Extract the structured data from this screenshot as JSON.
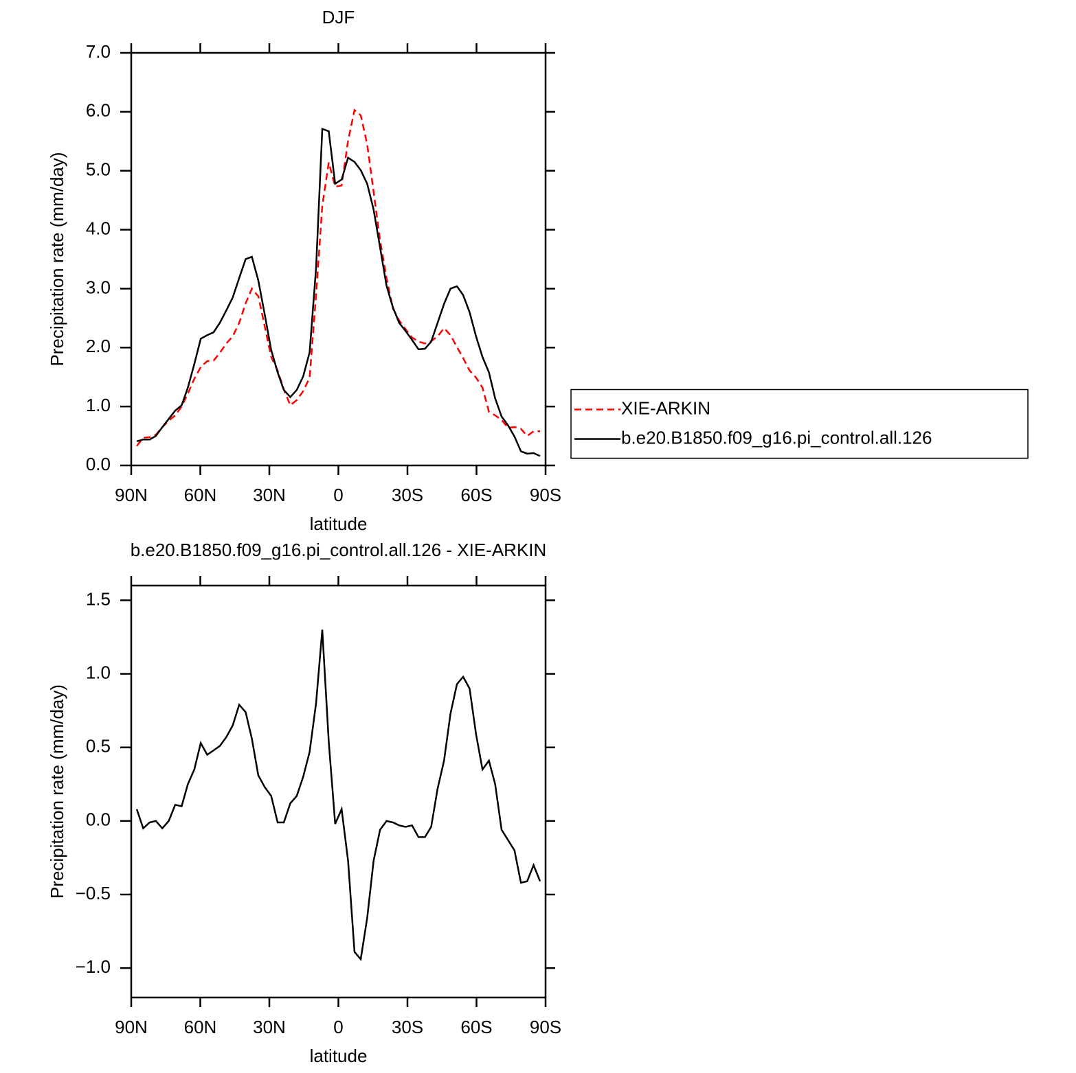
{
  "chart_data": [
    {
      "type": "line",
      "title": "DJF",
      "xlabel": "latitude",
      "ylabel": "Precipitation rate (mm/day)",
      "x": [
        87.6,
        84.8,
        82.0,
        79.3,
        76.5,
        73.7,
        70.9,
        68.1,
        65.4,
        62.6,
        59.8,
        57.0,
        54.2,
        51.5,
        48.7,
        45.9,
        43.1,
        40.3,
        37.6,
        34.8,
        32.0,
        29.2,
        26.4,
        23.7,
        20.9,
        18.1,
        15.3,
        12.5,
        9.7,
        7.0,
        4.2,
        1.4,
        -1.4,
        -4.2,
        -7.0,
        -9.7,
        -12.5,
        -15.3,
        -18.1,
        -20.9,
        -23.7,
        -26.4,
        -29.2,
        -32.0,
        -34.8,
        -37.6,
        -40.3,
        -43.1,
        -45.9,
        -48.7,
        -51.5,
        -54.2,
        -57.0,
        -59.8,
        -62.6,
        -65.4,
        -68.1,
        -70.9,
        -73.7,
        -76.5,
        -79.3,
        -82.0,
        -84.8,
        -87.6
      ],
      "series": [
        {
          "name": "XIE-ARKIN",
          "color": "#ff0000",
          "linestyle": "dashed",
          "values": [
            0.33,
            0.47,
            0.48,
            0.52,
            0.65,
            0.76,
            0.85,
            1.0,
            1.22,
            1.47,
            1.67,
            1.77,
            1.78,
            1.91,
            2.07,
            2.19,
            2.42,
            2.75,
            3.0,
            2.87,
            2.36,
            1.84,
            1.61,
            1.29,
            1.02,
            1.11,
            1.26,
            1.49,
            2.89,
            4.4,
            5.14,
            4.73,
            4.75,
            5.51,
            6.03,
            5.94,
            5.45,
            4.64,
            3.82,
            3.18,
            2.66,
            2.46,
            2.31,
            2.17,
            2.1,
            2.07,
            2.11,
            2.19,
            2.33,
            2.21,
            2.01,
            1.82,
            1.61,
            1.49,
            1.32,
            0.91,
            0.85,
            0.77,
            0.64,
            0.65,
            0.62,
            0.5,
            0.58,
            0.58
          ]
        },
        {
          "name": "b.e20.B1850.f09_g16.pi_control.all.126",
          "color": "#000000",
          "linestyle": "solid",
          "values": [
            0.41,
            0.44,
            0.44,
            0.5,
            0.65,
            0.79,
            0.93,
            1.02,
            1.32,
            1.72,
            2.15,
            2.21,
            2.26,
            2.42,
            2.63,
            2.85,
            3.18,
            3.5,
            3.54,
            3.14,
            2.56,
            1.96,
            1.58,
            1.28,
            1.16,
            1.28,
            1.51,
            1.92,
            3.35,
            5.71,
            5.67,
            4.78,
            4.85,
            5.22,
            5.15,
            5.01,
            4.78,
            4.34,
            3.7,
            3.05,
            2.68,
            2.42,
            2.28,
            2.13,
            1.97,
            1.98,
            2.1,
            2.42,
            2.74,
            3.0,
            3.04,
            2.89,
            2.6,
            2.19,
            1.84,
            1.58,
            1.14,
            0.83,
            0.68,
            0.49,
            0.24,
            0.2,
            0.21,
            0.16
          ]
        }
      ],
      "xlim": [
        90,
        -90
      ],
      "xticks": [
        {
          "value": 90,
          "label": "90N"
        },
        {
          "value": 60,
          "label": "60N"
        },
        {
          "value": 30,
          "label": "30N"
        },
        0,
        {
          "value": -30,
          "label": "30S"
        },
        {
          "value": -60,
          "label": "60S"
        },
        {
          "value": -90,
          "label": "90S"
        }
      ],
      "ylim": [
        0,
        7
      ],
      "yticks": [
        {
          "value": 0,
          "label": "0.0"
        },
        {
          "value": 1,
          "label": "1.0"
        },
        {
          "value": 2,
          "label": "2.0"
        },
        {
          "value": 3,
          "label": "3.0"
        },
        {
          "value": 4,
          "label": "4.0"
        },
        {
          "value": 5,
          "label": "5.0"
        },
        {
          "value": 6,
          "label": "6.0"
        },
        {
          "value": 7,
          "label": "7.0"
        }
      ],
      "legend": "right"
    },
    {
      "type": "line",
      "title": "b.e20.B1850.f09_g16.pi_control.all.126 - XIE-ARKIN",
      "xlabel": "latitude",
      "ylabel": "Precipitation rate (mm/day)",
      "x": [
        87.6,
        84.8,
        82.0,
        79.3,
        76.5,
        73.7,
        70.9,
        68.1,
        65.4,
        62.6,
        59.8,
        57.0,
        54.2,
        51.5,
        48.7,
        45.9,
        43.1,
        40.3,
        37.6,
        34.8,
        32.0,
        29.2,
        26.4,
        23.7,
        20.9,
        18.1,
        15.3,
        12.5,
        9.7,
        7.0,
        4.2,
        1.4,
        -1.4,
        -4.2,
        -7.0,
        -9.7,
        -12.5,
        -15.3,
        -18.1,
        -20.9,
        -23.7,
        -26.4,
        -29.2,
        -32.0,
        -34.8,
        -37.6,
        -40.3,
        -43.1,
        -45.9,
        -48.7,
        -51.5,
        -54.2,
        -57.0,
        -59.8,
        -62.6,
        -65.4,
        -68.1,
        -70.9,
        -73.7,
        -76.5,
        -79.3,
        -82.0,
        -84.8,
        -87.6
      ],
      "series": [
        {
          "color": "#000000",
          "linestyle": "solid",
          "values": [
            0.08,
            -0.05,
            -0.01,
            0.0,
            -0.05,
            0.0,
            0.11,
            0.1,
            0.25,
            0.35,
            0.53,
            0.45,
            0.48,
            0.51,
            0.57,
            0.65,
            0.79,
            0.74,
            0.56,
            0.31,
            0.23,
            0.17,
            -0.01,
            -0.01,
            0.12,
            0.17,
            0.3,
            0.47,
            0.8,
            1.3,
            0.54,
            -0.02,
            0.08,
            -0.27,
            -0.89,
            -0.94,
            -0.66,
            -0.27,
            -0.06,
            0.0,
            -0.01,
            -0.03,
            -0.04,
            -0.03,
            -0.11,
            -0.11,
            -0.04,
            0.22,
            0.41,
            0.73,
            0.93,
            0.98,
            0.9,
            0.59,
            0.35,
            0.41,
            0.25,
            -0.06,
            -0.13,
            -0.2,
            -0.42,
            -0.41,
            -0.3,
            -0.41
          ]
        }
      ],
      "xlim": [
        90,
        -90
      ],
      "xticks": [
        {
          "value": 90,
          "label": "90N"
        },
        {
          "value": 60,
          "label": "60N"
        },
        {
          "value": 30,
          "label": "30N"
        },
        0,
        {
          "value": -30,
          "label": "30S"
        },
        {
          "value": -60,
          "label": "60S"
        },
        {
          "value": -90,
          "label": "90S"
        }
      ],
      "ylim": [
        -1.2,
        1.6
      ],
      "yticks": [
        {
          "value": -1,
          "label": "−1.0"
        },
        {
          "value": -0.5,
          "label": "−0.5"
        },
        {
          "value": 0,
          "label": "0.0"
        },
        {
          "value": 0.5,
          "label": "0.5"
        },
        {
          "value": 1,
          "label": "1.0"
        },
        {
          "value": 1.5,
          "label": "1.5"
        }
      ]
    }
  ]
}
